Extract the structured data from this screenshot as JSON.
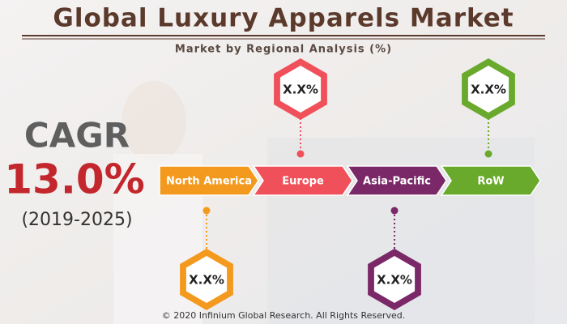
{
  "header": {
    "title": "Global Luxury Apparels Market",
    "subtitle": "Market by Regional Analysis (%)"
  },
  "cagr": {
    "label": "CAGR",
    "value": "13.0%",
    "period": "(2019-2025)"
  },
  "regions": [
    {
      "name": "North America",
      "value_label": "X.X%",
      "color": "#f39a1e"
    },
    {
      "name": "Europe",
      "value_label": "X.X%",
      "color": "#f0505a"
    },
    {
      "name": "Asia-Pacific",
      "value_label": "X.X%",
      "color": "#7a2868"
    },
    {
      "name": "RoW",
      "value_label": "X.X%",
      "color": "#69a92c"
    }
  ],
  "footer": "© 2020 Infinium Global Research. All Rights Reserved."
}
